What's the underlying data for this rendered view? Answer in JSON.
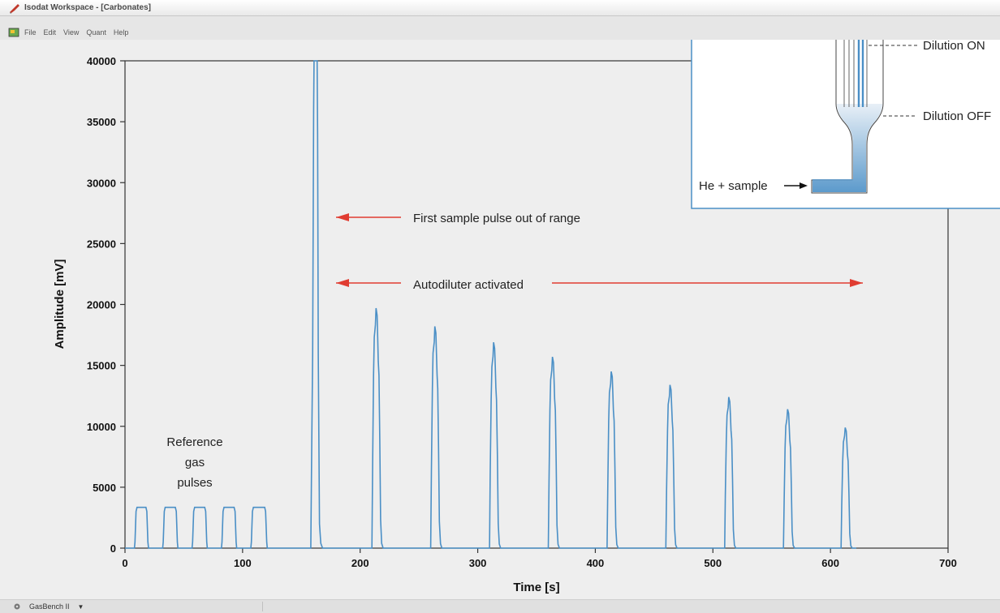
{
  "window": {
    "title": "Isodat Workspace - [Carbonates]",
    "app_icon": "isodat-app-icon"
  },
  "menu": {
    "icon": "workspace-document-icon",
    "items": [
      "File",
      "Edit",
      "View",
      "Quant",
      "Help"
    ]
  },
  "status": {
    "icon": "gasbench-device-icon",
    "device": "GasBench II",
    "dropdown_icon": "chevron-down-icon"
  },
  "colors": {
    "trace": "#4a8fc6",
    "arrow": "#e03c31",
    "plot_bg": "#eeeeee",
    "capillary": "#4a8fc6"
  },
  "chart_data": {
    "type": "line",
    "xlabel": "Time [s]",
    "ylabel": "Amplitude [mV]",
    "xlim": [
      0,
      700
    ],
    "ylim": [
      0,
      40000
    ],
    "xticks": [
      0,
      100,
      200,
      300,
      400,
      500,
      600,
      700
    ],
    "yticks": [
      0,
      5000,
      10000,
      15000,
      20000,
      25000,
      30000,
      35000,
      40000
    ],
    "grid": false,
    "reference_pulses": [
      {
        "start": 8,
        "end": 20,
        "height": 3350
      },
      {
        "start": 32,
        "end": 45,
        "height": 3350
      },
      {
        "start": 57,
        "end": 70,
        "height": 3350
      },
      {
        "start": 82,
        "end": 95,
        "height": 3350
      },
      {
        "start": 107,
        "end": 121,
        "height": 3350
      }
    ],
    "sample_peaks": [
      {
        "center": 162,
        "height": 40000,
        "clipped": true
      },
      {
        "center": 214,
        "height": 19700
      },
      {
        "center": 264,
        "height": 18200
      },
      {
        "center": 314,
        "height": 16900
      },
      {
        "center": 364,
        "height": 15700
      },
      {
        "center": 414,
        "height": 14500
      },
      {
        "center": 464,
        "height": 13400
      },
      {
        "center": 514,
        "height": 12400
      },
      {
        "center": 564,
        "height": 11400
      },
      {
        "center": 613,
        "height": 9900
      }
    ],
    "annotations": {
      "reference_label": [
        "Reference",
        "gas",
        "pulses"
      ],
      "first_pulse": "First sample pulse out of range",
      "autodiluter": "Autodiluter activated"
    }
  },
  "inset": {
    "dilution_on": "Dilution ON",
    "dilution_off": "Dilution OFF",
    "inlet": "He + sample"
  }
}
